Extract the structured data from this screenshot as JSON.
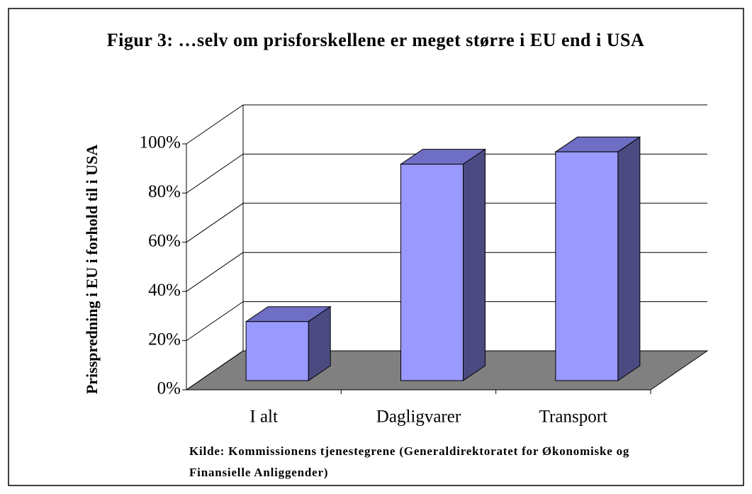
{
  "chart_data": {
    "type": "bar3d",
    "title": "Figur 3: …selv om prisforskellene er meget større i EU end i USA",
    "ylabel": "Prisspredning i EU i forhold til i USA",
    "source": "Kilde: Kommissionens tjenestegrene (Generaldirektoratet for Økonomiske og Finansielle Anliggender)",
    "categories": [
      "I alt",
      "Dagligvarer",
      "Transport"
    ],
    "values": [
      24,
      88,
      93
    ],
    "color": "#9999ff",
    "ylim": [
      0,
      100
    ],
    "yticks": [
      {
        "value": 0,
        "label": "0%"
      },
      {
        "value": 20,
        "label": "20%"
      },
      {
        "value": 40,
        "label": "40%"
      },
      {
        "value": 60,
        "label": "60%"
      },
      {
        "value": 80,
        "label": "80%"
      },
      {
        "value": 100,
        "label": "100%"
      }
    ],
    "grid": true
  }
}
